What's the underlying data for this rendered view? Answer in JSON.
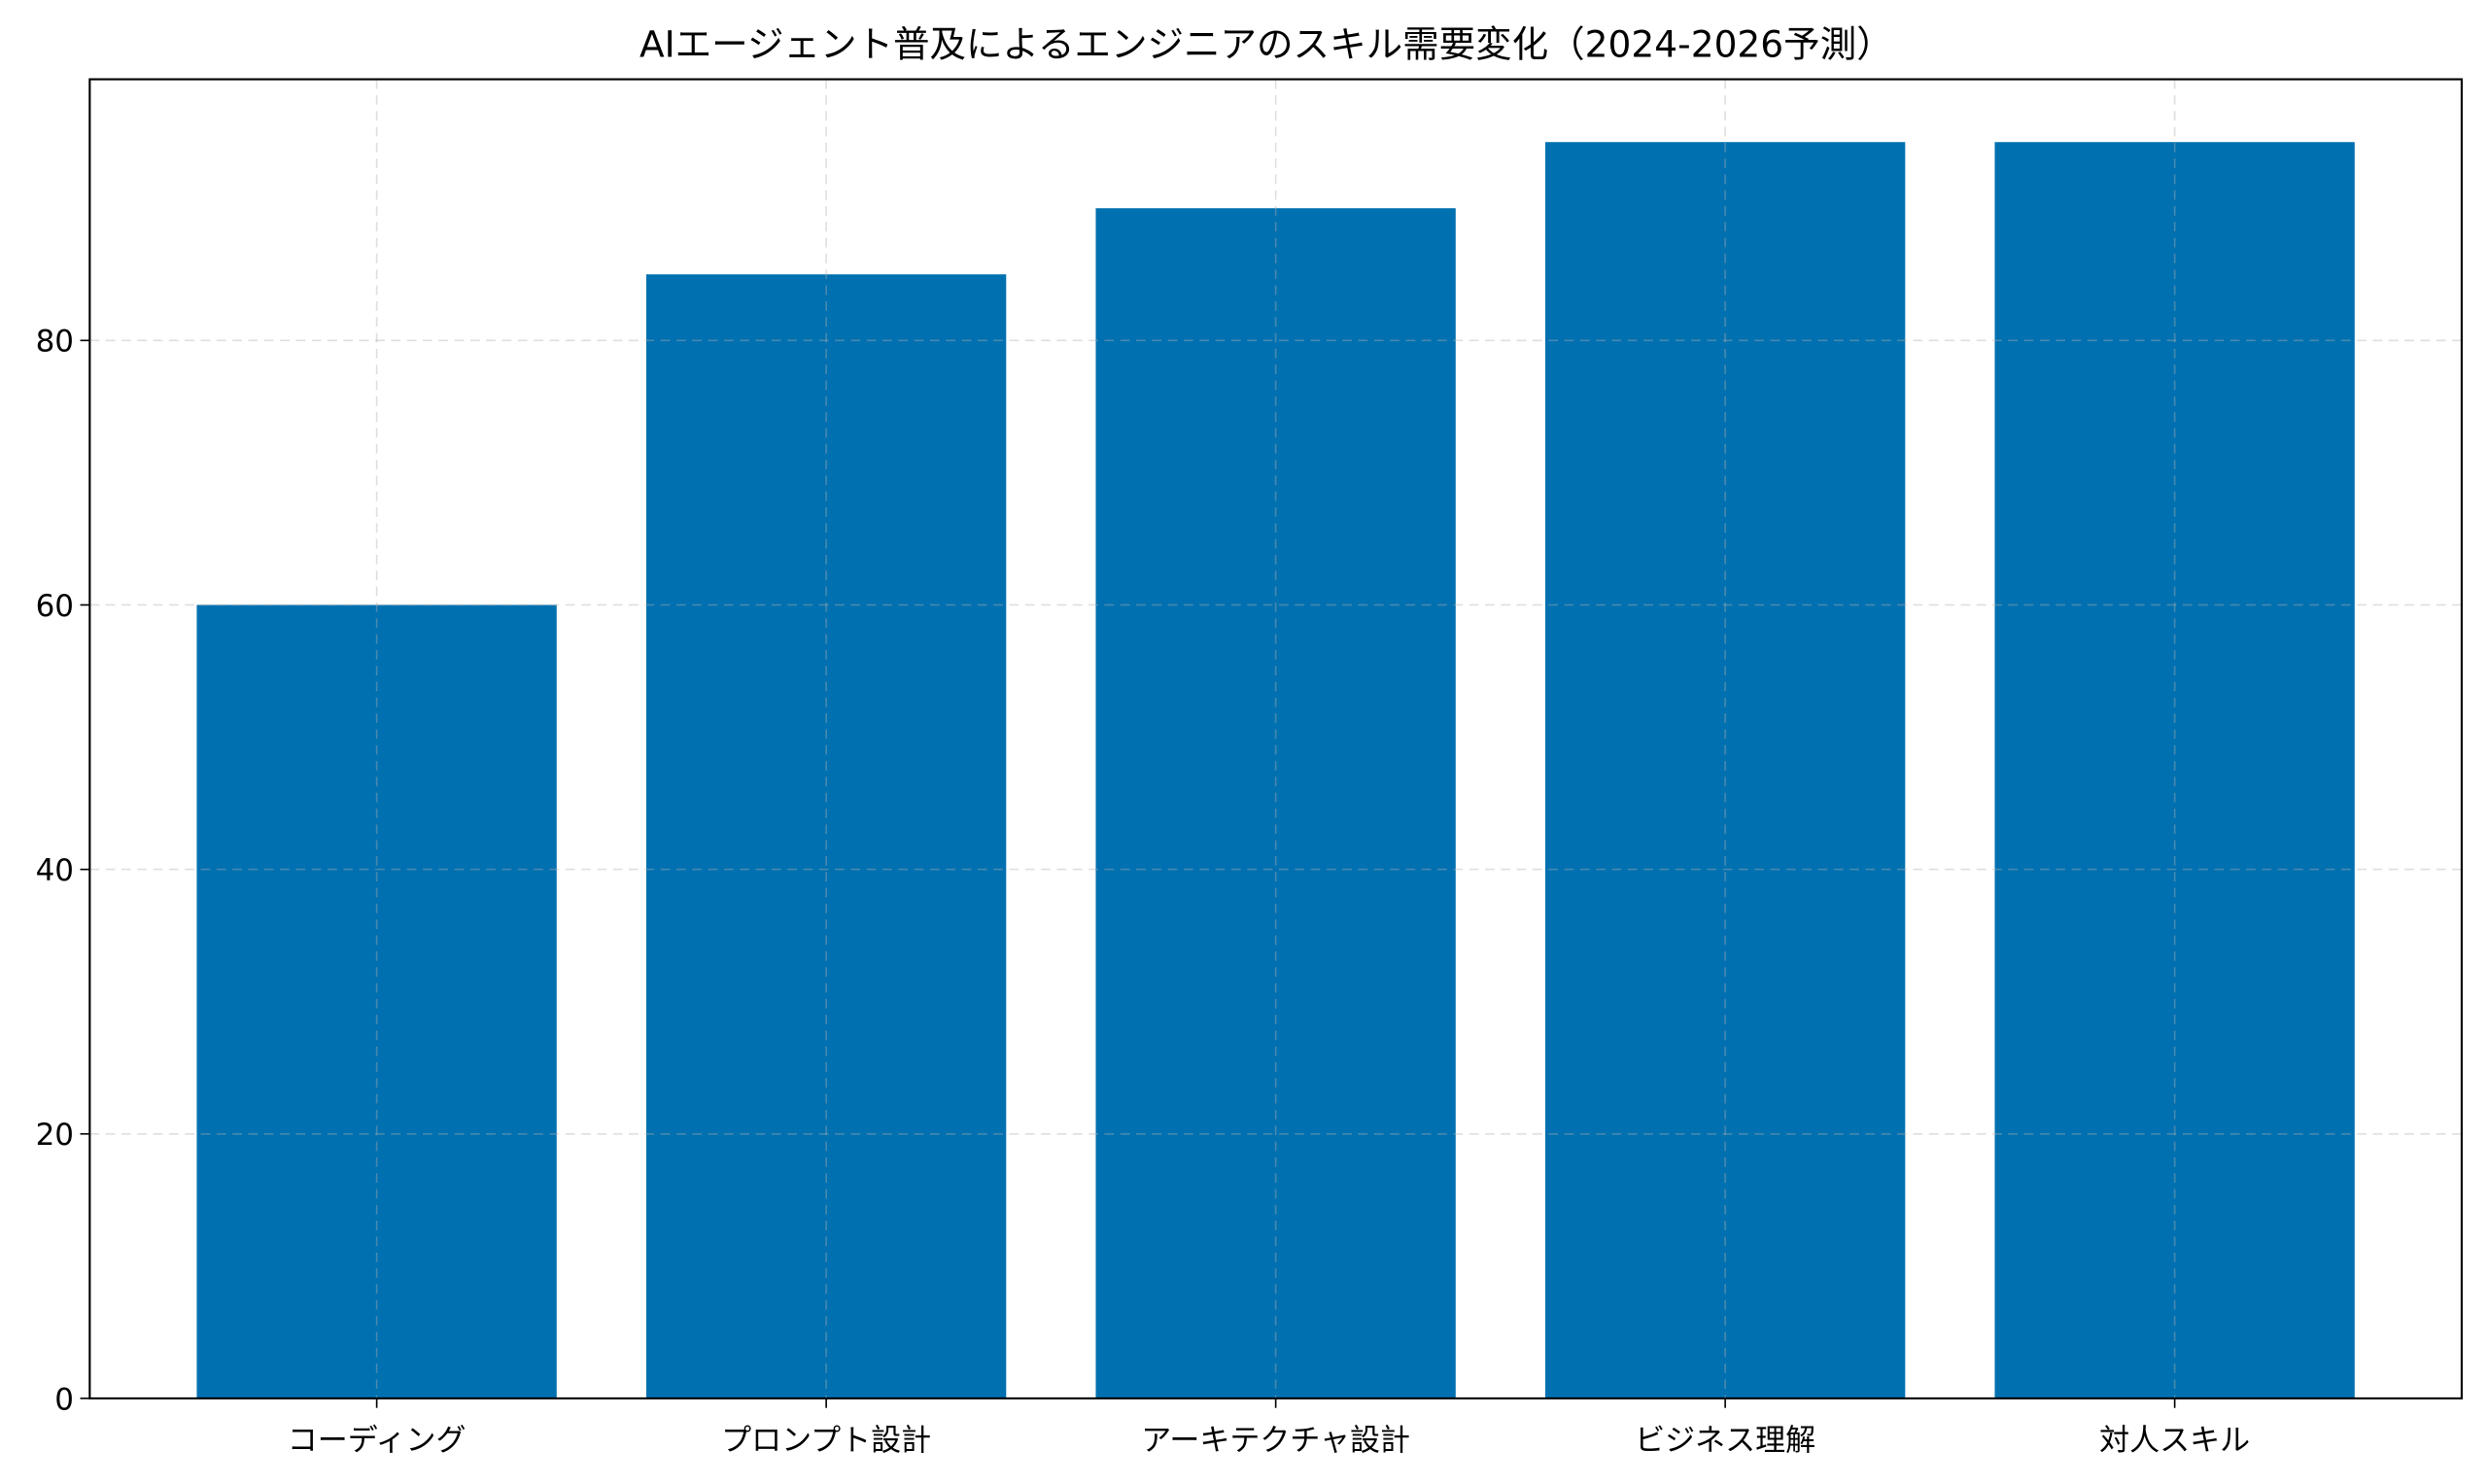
{
  "chart_data": {
    "type": "bar",
    "title": "AIエージェント普及によるエンジニアのスキル需要変化（2024-2026予測）",
    "xlabel": "",
    "ylabel": "",
    "categories": [
      "コーディング",
      "プロンプト設計",
      "アーキテクチャ設計",
      "ビジネス理解",
      "対人スキル"
    ],
    "values": [
      60,
      85,
      90,
      95,
      95
    ],
    "ylim": [
      0,
      99.75
    ],
    "yticks": [
      0,
      20,
      40,
      60,
      80
    ],
    "grid": true,
    "bar_color": "#0070b0"
  }
}
